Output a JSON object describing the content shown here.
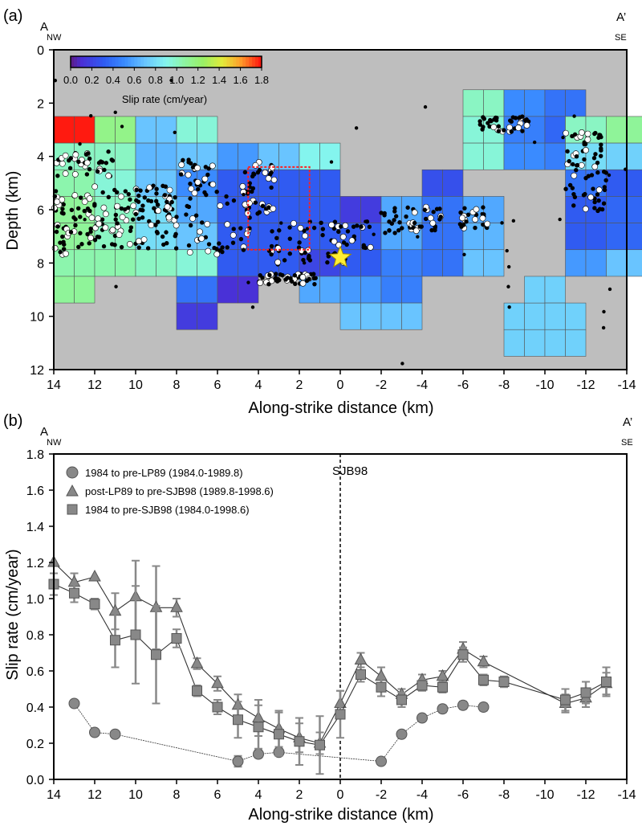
{
  "panel_a": {
    "label": "(a)",
    "end_left": "A",
    "end_left_dir": "NW",
    "end_right": "A’",
    "end_right_dir": "SE",
    "colorbar_title": "Slip rate (cm/year)",
    "colorbar_ticks": [
      "0.0",
      "0.2",
      "0.4",
      "0.6",
      "0.8",
      "1.0",
      "1.2",
      "1.4",
      "1.6",
      "1.8"
    ],
    "colorbar_range": [
      0,
      1.8
    ],
    "background_color": "#bebebe",
    "highlight_box_color": "#ff2020",
    "mainshock_star_color": "#ffee33",
    "cell_size_km": [
      2,
      1
    ],
    "cells": [
      {
        "x": 14,
        "d": 2.5,
        "v": 1.8
      },
      {
        "x": 12,
        "d": 2.5,
        "v": 1.15
      },
      {
        "x": 10,
        "d": 2.5,
        "v": 0.7
      },
      {
        "x": 8,
        "d": 2.5,
        "v": 0.95
      },
      {
        "x": 14,
        "d": 3.5,
        "v": 1.0
      },
      {
        "x": 12,
        "d": 3.5,
        "v": 1.0
      },
      {
        "x": 10,
        "d": 3.5,
        "v": 0.65
      },
      {
        "x": 8,
        "d": 3.5,
        "v": 0.7
      },
      {
        "x": 6,
        "d": 3.5,
        "v": 0.55
      },
      {
        "x": 4,
        "d": 3.5,
        "v": 0.7
      },
      {
        "x": 2,
        "d": 3.5,
        "v": 0.9
      },
      {
        "x": 14,
        "d": 4.5,
        "v": 1.05
      },
      {
        "x": 12,
        "d": 4.5,
        "v": 0.95
      },
      {
        "x": 10,
        "d": 4.5,
        "v": 0.7
      },
      {
        "x": 8,
        "d": 4.5,
        "v": 0.5
      },
      {
        "x": 6,
        "d": 4.5,
        "v": 0.3
      },
      {
        "x": 4,
        "d": 4.5,
        "v": 0.3
      },
      {
        "x": 2,
        "d": 4.5,
        "v": 0.3
      },
      {
        "x": -4,
        "d": 4.5,
        "v": 0.25
      },
      {
        "x": 14,
        "d": 5.5,
        "v": 1.1
      },
      {
        "x": 12,
        "d": 5.5,
        "v": 1.0
      },
      {
        "x": 10,
        "d": 5.5,
        "v": 0.8
      },
      {
        "x": 8,
        "d": 5.5,
        "v": 0.6
      },
      {
        "x": 6,
        "d": 5.5,
        "v": 0.3
      },
      {
        "x": 4,
        "d": 5.5,
        "v": 0.3
      },
      {
        "x": 2,
        "d": 5.5,
        "v": 0.3
      },
      {
        "x": 0,
        "d": 5.5,
        "v": 0.15
      },
      {
        "x": -2,
        "d": 5.5,
        "v": 0.6
      },
      {
        "x": -4,
        "d": 5.5,
        "v": 0.4
      },
      {
        "x": -6,
        "d": 5.5,
        "v": 0.6
      },
      {
        "x": 14,
        "d": 6.5,
        "v": 1.1
      },
      {
        "x": 12,
        "d": 6.5,
        "v": 1.0
      },
      {
        "x": 10,
        "d": 6.5,
        "v": 0.8
      },
      {
        "x": 8,
        "d": 6.5,
        "v": 0.7
      },
      {
        "x": 6,
        "d": 6.5,
        "v": 0.3
      },
      {
        "x": 4,
        "d": 6.5,
        "v": 0.3
      },
      {
        "x": 2,
        "d": 6.5,
        "v": 0.3
      },
      {
        "x": 0,
        "d": 6.5,
        "v": 0.3
      },
      {
        "x": -2,
        "d": 6.5,
        "v": 0.6
      },
      {
        "x": -4,
        "d": 6.5,
        "v": 0.4
      },
      {
        "x": -6,
        "d": 6.5,
        "v": 0.65
      },
      {
        "x": 14,
        "d": 7.5,
        "v": 1.05
      },
      {
        "x": 12,
        "d": 7.5,
        "v": 1.05
      },
      {
        "x": 10,
        "d": 7.5,
        "v": 1.0
      },
      {
        "x": 8,
        "d": 7.5,
        "v": 0.95
      },
      {
        "x": 6,
        "d": 7.5,
        "v": 0.3
      },
      {
        "x": 4,
        "d": 7.5,
        "v": 0.3
      },
      {
        "x": 2,
        "d": 7.5,
        "v": 0.2
      },
      {
        "x": 0,
        "d": 7.5,
        "v": 0.3
      },
      {
        "x": -2,
        "d": 7.5,
        "v": 0.45
      },
      {
        "x": -4,
        "d": 7.5,
        "v": 0.4
      },
      {
        "x": -6,
        "d": 7.5,
        "v": 0.7
      },
      {
        "x": 14,
        "d": 8.5,
        "v": 1.1
      },
      {
        "x": 8,
        "d": 8.5,
        "v": 0.4
      },
      {
        "x": 6,
        "d": 8.5,
        "v": 0.1
      },
      {
        "x": 2,
        "d": 8.5,
        "v": 0.6
      },
      {
        "x": 0,
        "d": 8.5,
        "v": 0.55
      },
      {
        "x": -2,
        "d": 8.5,
        "v": 0.45
      },
      {
        "x": 8,
        "d": 9.5,
        "v": 0.15
      },
      {
        "x": 0,
        "d": 9.5,
        "v": 0.7
      },
      {
        "x": -2,
        "d": 9.5,
        "v": 0.7
      },
      {
        "x": 14,
        "d": 2.5,
        "w": 0,
        "v": 1.8
      },
      {
        "x": -6,
        "d": 1.5,
        "v": 1.0
      },
      {
        "x": -8,
        "d": 1.5,
        "v": 0.5
      },
      {
        "x": -10,
        "d": 1.5,
        "v": 0.4
      },
      {
        "x": -6,
        "d": 2.5,
        "v": 0.95
      },
      {
        "x": -8,
        "d": 2.5,
        "v": 0.45
      },
      {
        "x": -10,
        "d": 2.5,
        "v": 0.35
      },
      {
        "x": -6,
        "d": 3.5,
        "v": 0.95
      },
      {
        "x": -8,
        "d": 3.5,
        "v": 0.5
      },
      {
        "x": -10,
        "d": 3.5,
        "v": 0.45
      },
      {
        "x": -11,
        "d": 2.5,
        "v": 1.0
      },
      {
        "x": -13,
        "d": 2.5,
        "v": 1.1
      },
      {
        "x": -11,
        "d": 3.5,
        "v": 0.8
      },
      {
        "x": -13,
        "d": 3.5,
        "v": 0.75
      },
      {
        "x": -11,
        "d": 4.5,
        "v": 0.4
      },
      {
        "x": -13,
        "d": 4.5,
        "v": 0.3
      },
      {
        "x": -11,
        "d": 5.5,
        "v": 0.3
      },
      {
        "x": -13,
        "d": 5.5,
        "v": 0.35
      },
      {
        "x": -11,
        "d": 6.5,
        "v": 0.3
      },
      {
        "x": -13,
        "d": 6.5,
        "v": 0.35
      },
      {
        "x": -11,
        "d": 7.5,
        "v": 0.55
      },
      {
        "x": -13,
        "d": 7.5,
        "v": 0.7
      },
      {
        "x": -8,
        "d": 9.5,
        "v": 0.75
      },
      {
        "x": -9,
        "d": 8.5,
        "v": 0.75
      },
      {
        "x": -8,
        "d": 10.5,
        "v": 0.75
      },
      {
        "x": -10,
        "d": 9.5,
        "v": 0.75
      },
      {
        "x": -10,
        "d": 10.5,
        "v": 0.75
      }
    ]
  },
  "panel_b": {
    "label": "(b)",
    "end_left": "A",
    "end_left_dir": "NW",
    "end_right": "A’",
    "end_right_dir": "SE",
    "event_label": "SJB98"
  },
  "chart_data": [
    {
      "type": "heatmap",
      "xlabel": "Along-strike distance (km)",
      "ylabel": "Depth (km)",
      "xlim": [
        14,
        -14
      ],
      "ylim": [
        12,
        0
      ],
      "xticks": [
        "14",
        "12",
        "10",
        "8",
        "6",
        "4",
        "2",
        "0",
        "-2",
        "-4",
        "-6",
        "-8",
        "-10",
        "-12",
        "-14"
      ],
      "yticks": [
        "0",
        "2",
        "4",
        "6",
        "8",
        "10",
        "12"
      ],
      "mainshock": {
        "x": 0,
        "depth": 7.8
      }
    },
    {
      "type": "scatter",
      "xlabel": "Along-strike distance (km)",
      "ylabel": "Slip rate (cm/year)",
      "xlim": [
        14,
        -14
      ],
      "ylim": [
        0,
        1.8
      ],
      "xticks": [
        "14",
        "12",
        "10",
        "8",
        "6",
        "4",
        "2",
        "0",
        "-2",
        "-4",
        "-6",
        "-8",
        "-10",
        "-12",
        "-14"
      ],
      "yticks": [
        "0.0",
        "0.2",
        "0.4",
        "0.6",
        "0.8",
        "1.0",
        "1.2",
        "1.4",
        "1.6",
        "1.8"
      ],
      "legend_position": "top-left",
      "series": [
        {
          "name": "1984 to pre-LP89 (1984.0-1989.8)",
          "marker": "circle",
          "x": [
            13,
            12,
            11,
            5,
            4,
            3,
            -2,
            -3,
            -4,
            -5,
            -6,
            -7
          ],
          "y": [
            0.42,
            0.26,
            0.25,
            0.1,
            0.14,
            0.15,
            0.1,
            0.25,
            0.34,
            0.39,
            0.41,
            0.4
          ],
          "err": [
            0,
            0,
            0,
            0.03,
            0.02,
            0.02,
            0,
            0,
            0,
            0.02,
            0.02,
            0.02
          ]
        },
        {
          "name": "post-LP89 to pre-SJB98 (1989.8-1998.6)",
          "marker": "triangle",
          "x": [
            14,
            13,
            12,
            11,
            10,
            9,
            8,
            7,
            6,
            5,
            4,
            3,
            2,
            1,
            0,
            -1,
            -2,
            -3,
            -4,
            -5,
            -6,
            -7,
            -11,
            -12,
            -13
          ],
          "y": [
            1.2,
            1.09,
            1.12,
            0.93,
            1.01,
            0.95,
            0.95,
            0.64,
            0.53,
            0.41,
            0.34,
            0.28,
            0.23,
            0.2,
            0.42,
            0.66,
            0.57,
            0.47,
            0.55,
            0.57,
            0.72,
            0.65,
            0.42,
            0.45,
            0.53
          ],
          "err": [
            0,
            0.05,
            0,
            0.1,
            0.2,
            0.23,
            0.05,
            0.03,
            0.04,
            0.06,
            0.1,
            0.1,
            0.08,
            0.06,
            0.07,
            0.04,
            0.05,
            0.03,
            0.03,
            0.03,
            0.04,
            0.03,
            0.05,
            0.05,
            0.06
          ]
        },
        {
          "name": "1984 to pre-SJB98 (1984.0-1998.6)",
          "marker": "square",
          "x": [
            14,
            13,
            12,
            11,
            10,
            9,
            8,
            7,
            6,
            5,
            4,
            3,
            2,
            1,
            0,
            -1,
            -2,
            -3,
            -4,
            -5,
            -6,
            -7,
            -8,
            -11,
            -12,
            -13
          ],
          "y": [
            1.08,
            1.03,
            0.97,
            0.77,
            0.8,
            0.69,
            0.78,
            0.49,
            0.4,
            0.33,
            0.29,
            0.25,
            0.21,
            0.19,
            0.36,
            0.58,
            0.51,
            0.44,
            0.52,
            0.51,
            0.69,
            0.55,
            0.54,
            0.44,
            0.48,
            0.54
          ],
          "err": [
            0.06,
            0.05,
            0.03,
            0.15,
            0.27,
            0.27,
            0.05,
            0.03,
            0.04,
            0.1,
            0.12,
            0.12,
            0.13,
            0.16,
            0.13,
            0.04,
            0.05,
            0.04,
            0.03,
            0.03,
            0.04,
            0.03,
            0.03,
            0.06,
            0.06,
            0.08
          ]
        }
      ]
    }
  ]
}
